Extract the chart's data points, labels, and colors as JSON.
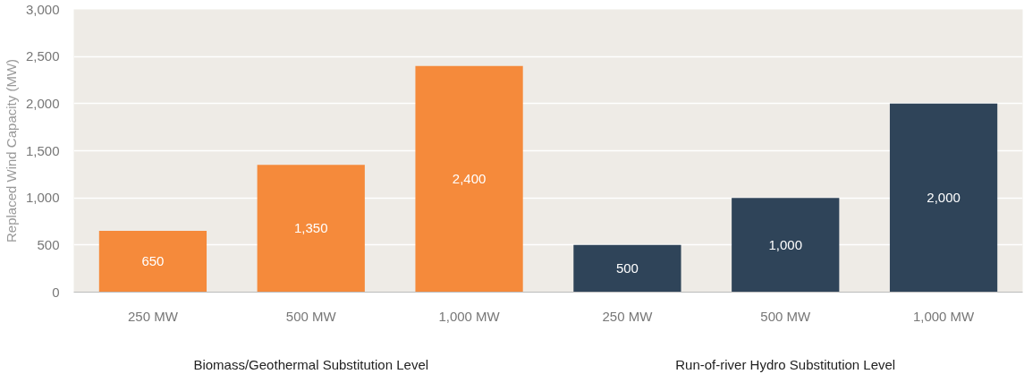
{
  "chart_data": {
    "type": "bar",
    "ylabel": "Replaced Wind Capacity (MW)",
    "categories": [
      "250 MW",
      "500 MW",
      "1,000 MW",
      "250 MW",
      "500 MW",
      "1,000 MW"
    ],
    "values": [
      650,
      1350,
      2400,
      500,
      1000,
      2000
    ],
    "colors": [
      "#f58a3b",
      "#f58a3b",
      "#f58a3b",
      "#2f4459",
      "#2f4459",
      "#2f4459"
    ],
    "value_labels": [
      "650",
      "1,350",
      "2,400",
      "500",
      "1,000",
      "2,000"
    ],
    "annotations": [
      "Biomass/Geothermal Substitution Level",
      "Run-of-river Hydro Substitution Level"
    ],
    "ylim": [
      0,
      3000
    ],
    "yticks": [
      {
        "value": 0,
        "label": "0"
      },
      {
        "value": 500,
        "label": "500"
      },
      {
        "value": 1000,
        "label": "1,000"
      },
      {
        "value": 1500,
        "label": "1,500"
      },
      {
        "value": 2000,
        "label": "2,000"
      },
      {
        "value": 2500,
        "label": "2,500"
      },
      {
        "value": 3000,
        "label": "3,000"
      }
    ],
    "grid": "y"
  }
}
